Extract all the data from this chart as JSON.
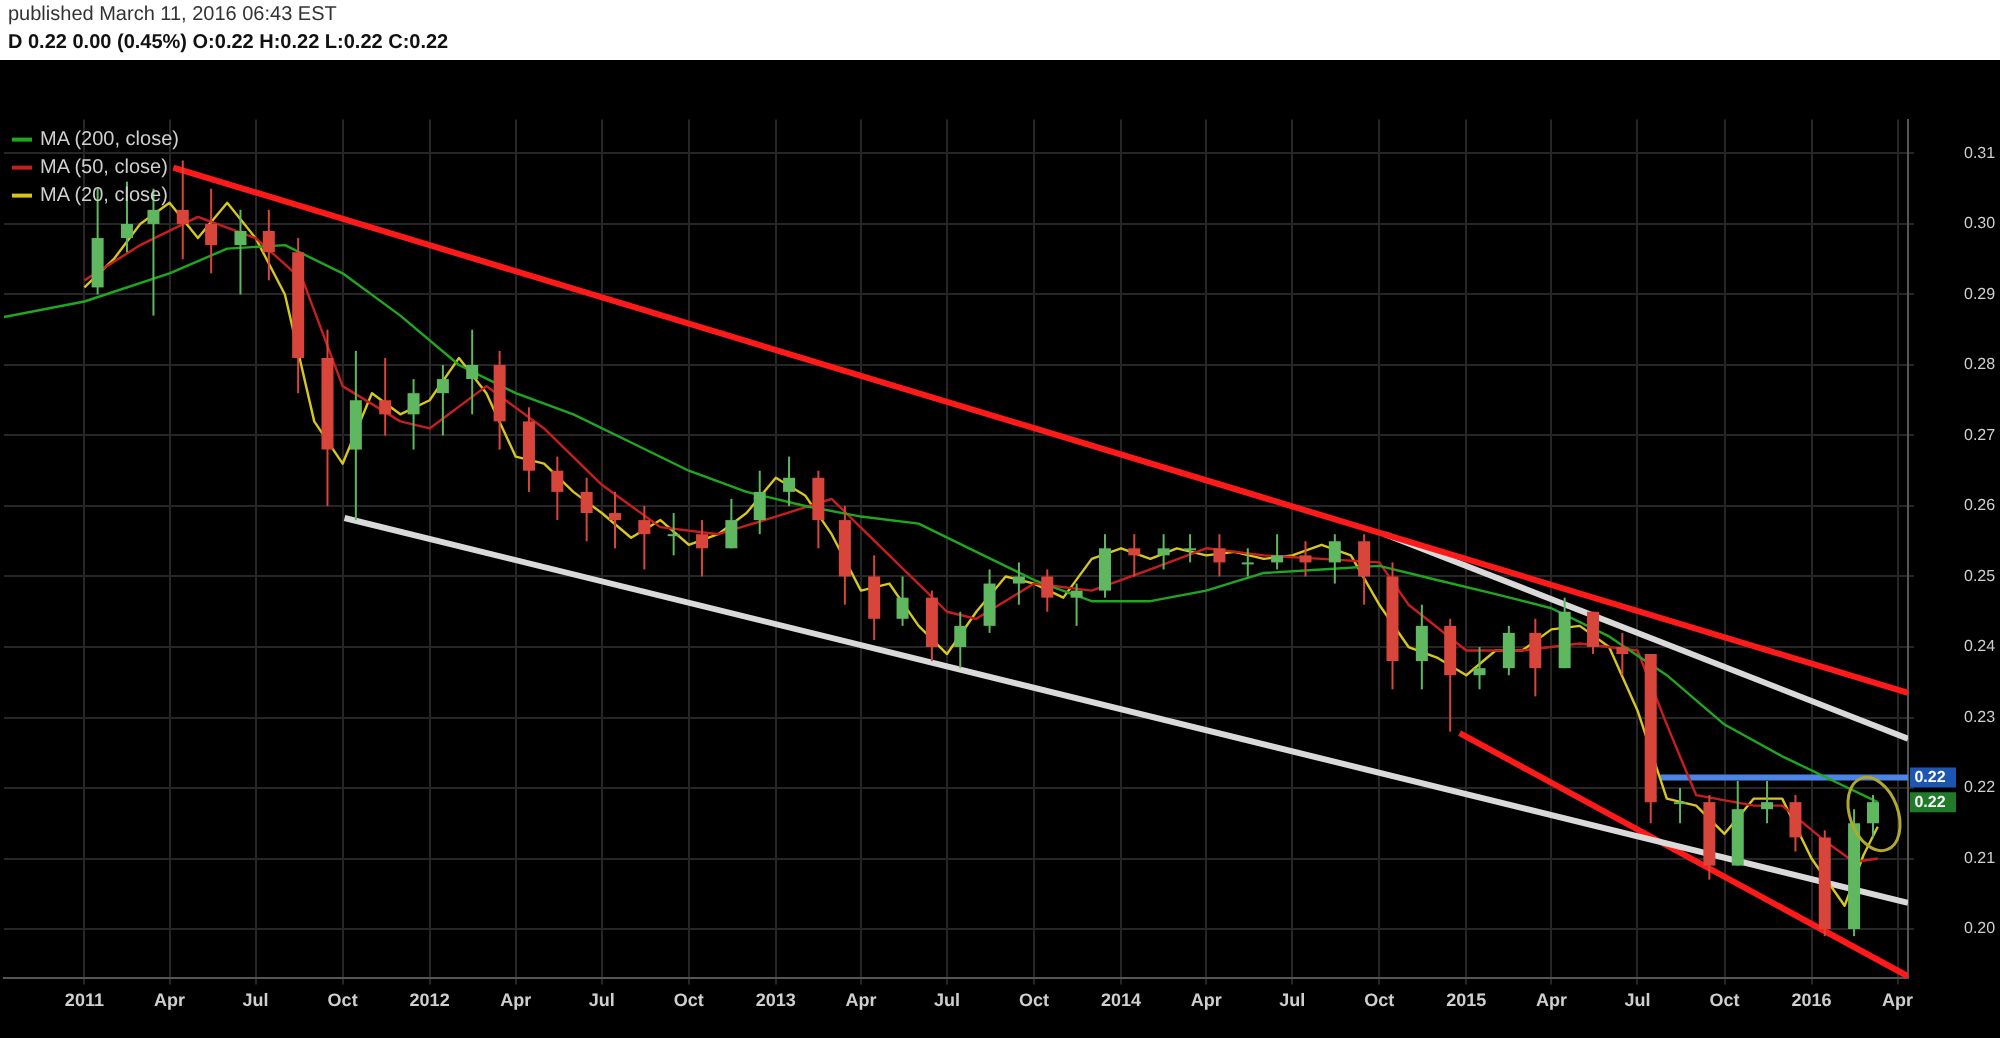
{
  "chart_data": {
    "type": "candlestick",
    "title": "D 0.22 0.00 (0.45%) O:0.22 H:0.22 L:0.22 C:0.22",
    "subtitle": "published March 11, 2016 06:43 EST",
    "x": [
      "2011-01-15",
      "2011-02-15",
      "2011-03-15",
      "2011-04-15",
      "2011-05-15",
      "2011-06-15",
      "2011-07-15",
      "2011-08-15",
      "2011-09-15",
      "2011-10-15",
      "2011-11-15",
      "2011-12-15",
      "2012-01-15",
      "2012-02-15",
      "2012-03-15",
      "2012-04-15",
      "2012-05-15",
      "2012-06-15",
      "2012-07-15",
      "2012-08-15",
      "2012-09-15",
      "2012-10-15",
      "2012-11-15",
      "2012-12-15",
      "2013-01-15",
      "2013-02-15",
      "2013-03-15",
      "2013-04-15",
      "2013-05-15",
      "2013-06-15",
      "2013-07-15",
      "2013-08-15",
      "2013-09-15",
      "2013-10-15",
      "2013-11-15",
      "2013-12-15",
      "2014-01-15",
      "2014-02-15",
      "2014-03-15",
      "2014-04-15",
      "2014-05-15",
      "2014-06-15",
      "2014-07-15",
      "2014-08-15",
      "2014-09-15",
      "2014-10-15",
      "2014-11-15",
      "2014-12-15",
      "2015-01-15",
      "2015-02-15",
      "2015-03-15",
      "2015-04-15",
      "2015-05-15",
      "2015-06-15",
      "2015-07-15",
      "2015-08-15",
      "2015-09-15",
      "2015-10-15",
      "2015-11-15",
      "2015-12-15",
      "2016-01-15",
      "2016-02-15",
      "2016-03-06"
    ],
    "ohlc": [
      [
        0.291,
        0.305,
        0.29,
        0.298
      ],
      [
        0.298,
        0.306,
        0.296,
        0.3
      ],
      [
        0.3,
        0.305,
        0.287,
        0.302
      ],
      [
        0.302,
        0.309,
        0.295,
        0.3
      ],
      [
        0.3,
        0.305,
        0.293,
        0.297
      ],
      [
        0.297,
        0.302,
        0.29,
        0.299
      ],
      [
        0.299,
        0.302,
        0.292,
        0.296
      ],
      [
        0.296,
        0.298,
        0.276,
        0.281
      ],
      [
        0.281,
        0.285,
        0.26,
        0.268
      ],
      [
        0.268,
        0.282,
        0.258,
        0.275
      ],
      [
        0.275,
        0.281,
        0.27,
        0.273
      ],
      [
        0.273,
        0.278,
        0.268,
        0.276
      ],
      [
        0.276,
        0.28,
        0.27,
        0.278
      ],
      [
        0.278,
        0.285,
        0.273,
        0.28
      ],
      [
        0.28,
        0.282,
        0.268,
        0.272
      ],
      [
        0.272,
        0.274,
        0.262,
        0.265
      ],
      [
        0.265,
        0.267,
        0.258,
        0.262
      ],
      [
        0.262,
        0.264,
        0.255,
        0.259
      ],
      [
        0.259,
        0.262,
        0.254,
        0.258
      ],
      [
        0.258,
        0.26,
        0.251,
        0.256
      ],
      [
        0.256,
        0.259,
        0.253,
        0.256
      ],
      [
        0.256,
        0.258,
        0.25,
        0.254
      ],
      [
        0.254,
        0.261,
        0.254,
        0.258
      ],
      [
        0.258,
        0.265,
        0.256,
        0.262
      ],
      [
        0.262,
        0.267,
        0.26,
        0.264
      ],
      [
        0.264,
        0.265,
        0.254,
        0.258
      ],
      [
        0.258,
        0.26,
        0.246,
        0.25
      ],
      [
        0.25,
        0.253,
        0.241,
        0.244
      ],
      [
        0.244,
        0.25,
        0.243,
        0.247
      ],
      [
        0.247,
        0.248,
        0.238,
        0.24
      ],
      [
        0.24,
        0.245,
        0.237,
        0.243
      ],
      [
        0.243,
        0.251,
        0.242,
        0.249
      ],
      [
        0.249,
        0.252,
        0.246,
        0.25
      ],
      [
        0.25,
        0.251,
        0.245,
        0.247
      ],
      [
        0.247,
        0.249,
        0.243,
        0.248
      ],
      [
        0.248,
        0.256,
        0.247,
        0.254
      ],
      [
        0.254,
        0.256,
        0.25,
        0.253
      ],
      [
        0.253,
        0.256,
        0.251,
        0.254
      ],
      [
        0.254,
        0.256,
        0.252,
        0.254
      ],
      [
        0.254,
        0.256,
        0.25,
        0.252
      ],
      [
        0.252,
        0.254,
        0.25,
        0.252
      ],
      [
        0.252,
        0.256,
        0.251,
        0.253
      ],
      [
        0.253,
        0.255,
        0.25,
        0.252
      ],
      [
        0.252,
        0.256,
        0.249,
        0.255
      ],
      [
        0.255,
        0.256,
        0.246,
        0.25
      ],
      [
        0.25,
        0.252,
        0.234,
        0.238
      ],
      [
        0.238,
        0.246,
        0.234,
        0.243
      ],
      [
        0.243,
        0.244,
        0.228,
        0.236
      ],
      [
        0.236,
        0.24,
        0.234,
        0.237
      ],
      [
        0.237,
        0.243,
        0.236,
        0.242
      ],
      [
        0.242,
        0.244,
        0.233,
        0.237
      ],
      [
        0.237,
        0.247,
        0.237,
        0.245
      ],
      [
        0.245,
        0.245,
        0.239,
        0.24
      ],
      [
        0.24,
        0.242,
        0.236,
        0.239
      ],
      [
        0.239,
        0.239,
        0.215,
        0.218
      ],
      [
        0.218,
        0.22,
        0.215,
        0.218
      ],
      [
        0.218,
        0.219,
        0.207,
        0.209
      ],
      [
        0.209,
        0.221,
        0.209,
        0.217
      ],
      [
        0.217,
        0.221,
        0.215,
        0.218
      ],
      [
        0.218,
        0.219,
        0.211,
        0.213
      ],
      [
        0.213,
        0.214,
        0.199,
        0.2
      ],
      [
        0.2,
        0.217,
        0.199,
        0.215
      ],
      [
        0.215,
        0.219,
        0.213,
        0.218
      ]
    ],
    "series": [
      {
        "type": "line",
        "name": "MA (200, close)",
        "color": "#1fa81f",
        "x": [
          "2010-10-08",
          "2011-01-01",
          "2011-04-01",
          "2011-06-01",
          "2011-08-01",
          "2011-10-01",
          "2011-12-01",
          "2012-02-01",
          "2012-04-01",
          "2012-06-01",
          "2012-08-01",
          "2012-10-01",
          "2012-12-01",
          "2013-02-01",
          "2013-04-01",
          "2013-06-01",
          "2013-08-01",
          "2013-10-01",
          "2013-12-01",
          "2014-02-01",
          "2014-04-01",
          "2014-06-01",
          "2014-08-01",
          "2014-10-01",
          "2014-12-01",
          "2015-02-01",
          "2015-04-01",
          "2015-06-01",
          "2015-08-01",
          "2015-10-01",
          "2015-12-01",
          "2016-02-01",
          "2016-03-11"
        ],
        "values": [
          0.2868,
          0.289,
          0.293,
          0.2965,
          0.297,
          0.293,
          0.287,
          0.28,
          0.276,
          0.273,
          0.269,
          0.265,
          0.262,
          0.26,
          0.2585,
          0.2575,
          0.2535,
          0.2495,
          0.2465,
          0.2465,
          0.248,
          0.2505,
          0.251,
          0.2515,
          0.2495,
          0.2475,
          0.2455,
          0.2415,
          0.236,
          0.229,
          0.2245,
          0.2205,
          0.218
        ]
      },
      {
        "type": "line",
        "name": "MA (50, close)",
        "color": "#c81e1e",
        "x": [
          "2011-01-01",
          "2011-03-01",
          "2011-05-01",
          "2011-07-01",
          "2011-08-20",
          "2011-10-01",
          "2011-12-01",
          "2012-01-01",
          "2012-03-01",
          "2012-05-01",
          "2012-07-01",
          "2012-09-01",
          "2012-11-01",
          "2013-01-01",
          "2013-03-01",
          "2013-05-01",
          "2013-07-01",
          "2013-08-01",
          "2013-10-01",
          "2013-12-01",
          "2014-02-01",
          "2014-04-01",
          "2014-06-01",
          "2014-08-01",
          "2014-10-01",
          "2014-11-01",
          "2015-01-01",
          "2015-03-01",
          "2015-05-01",
          "2015-07-01",
          "2015-08-01",
          "2015-09-01",
          "2015-11-01",
          "2015-12-01",
          "2016-01-15",
          "2016-02-15",
          "2016-03-11"
        ],
        "values": [
          0.292,
          0.297,
          0.301,
          0.298,
          0.292,
          0.277,
          0.272,
          0.271,
          0.277,
          0.271,
          0.263,
          0.257,
          0.256,
          0.2585,
          0.261,
          0.253,
          0.245,
          0.244,
          0.249,
          0.248,
          0.251,
          0.254,
          0.253,
          0.2525,
          0.252,
          0.246,
          0.2395,
          0.2395,
          0.2405,
          0.2395,
          0.229,
          0.219,
          0.2175,
          0.2175,
          0.2125,
          0.2095,
          0.21
        ]
      },
      {
        "type": "line",
        "name": "MA (20, close)",
        "color": "#d6c61e",
        "x": [
          "2011-01-01",
          "2011-02-01",
          "2011-03-01",
          "2011-04-01",
          "2011-05-01",
          "2011-06-01",
          "2011-07-01",
          "2011-08-01",
          "2011-09-01",
          "2011-10-01",
          "2011-11-01",
          "2011-12-01",
          "2012-01-01",
          "2012-02-01",
          "2012-03-01",
          "2012-04-01",
          "2012-05-01",
          "2012-06-01",
          "2012-07-01",
          "2012-08-01",
          "2012-09-01",
          "2012-10-01",
          "2012-11-01",
          "2012-12-01",
          "2013-01-01",
          "2013-02-01",
          "2013-03-01",
          "2013-04-01",
          "2013-05-01",
          "2013-06-01",
          "2013-07-01",
          "2013-08-01",
          "2013-09-01",
          "2013-10-01",
          "2013-11-01",
          "2013-12-01",
          "2014-01-01",
          "2014-02-01",
          "2014-03-01",
          "2014-04-01",
          "2014-05-01",
          "2014-06-01",
          "2014-07-01",
          "2014-08-01",
          "2014-09-01",
          "2014-10-01",
          "2014-11-01",
          "2014-12-01",
          "2015-01-01",
          "2015-02-01",
          "2015-03-01",
          "2015-04-01",
          "2015-05-01",
          "2015-06-01",
          "2015-07-01",
          "2015-08-01",
          "2015-09-01",
          "2015-10-01",
          "2015-11-01",
          "2015-12-01",
          "2016-01-01",
          "2016-02-05",
          "2016-02-25",
          "2016-03-11"
        ],
        "values": [
          0.291,
          0.295,
          0.3,
          0.303,
          0.298,
          0.303,
          0.298,
          0.29,
          0.272,
          0.266,
          0.276,
          0.273,
          0.275,
          0.281,
          0.276,
          0.267,
          0.266,
          0.262,
          0.259,
          0.2555,
          0.258,
          0.2545,
          0.256,
          0.259,
          0.264,
          0.2615,
          0.256,
          0.248,
          0.249,
          0.243,
          0.239,
          0.245,
          0.25,
          0.249,
          0.247,
          0.2525,
          0.254,
          0.2525,
          0.254,
          0.253,
          0.2535,
          0.2525,
          0.253,
          0.2545,
          0.253,
          0.246,
          0.24,
          0.2385,
          0.236,
          0.2395,
          0.2395,
          0.2425,
          0.243,
          0.24,
          0.231,
          0.2185,
          0.2175,
          0.2135,
          0.2185,
          0.2185,
          0.21,
          0.2033,
          0.2105,
          0.2145
        ]
      },
      {
        "type": "line",
        "color": "#ff1a1a",
        "x": [
          "2011-04-05",
          "2016-04-12"
        ],
        "values": [
          0.308,
          0.2335
        ]
      },
      {
        "type": "line",
        "color": "#d9d9d9",
        "x": [
          "2014-10-07",
          "2016-04-12"
        ],
        "values": [
          0.256,
          0.227
        ]
      },
      {
        "type": "line",
        "color": "#d9d9d9",
        "x": [
          "2011-10-03",
          "2016-04-12"
        ],
        "values": [
          0.2583,
          0.2037
        ]
      },
      {
        "type": "line",
        "color": "#ff1a1a",
        "x": [
          "2014-12-25",
          "2016-04-12"
        ],
        "values": [
          0.2278,
          0.1933
        ]
      },
      {
        "type": "line",
        "color": "#4a86e8",
        "x": [
          "2015-07-25",
          "2016-04-12"
        ],
        "values": [
          0.2215,
          0.2215
        ]
      }
    ],
    "annotations": [
      {
        "text": "0.22",
        "y": 0.2215
      },
      {
        "text": "0.22",
        "y": 0.218
      }
    ],
    "xlim": [
      "2010-10-08",
      "2016-04-12"
    ],
    "xticks": [
      {
        "value": "2011-01",
        "label": "2011"
      },
      {
        "value": "2011-04",
        "label": "Apr"
      },
      {
        "value": "2011-07",
        "label": "Jul"
      },
      {
        "value": "2011-10",
        "label": "Oct"
      },
      {
        "value": "2012-01",
        "label": "2012"
      },
      {
        "value": "2012-04",
        "label": "Apr"
      },
      {
        "value": "2012-07",
        "label": "Jul"
      },
      {
        "value": "2012-10",
        "label": "Oct"
      },
      {
        "value": "2013-01",
        "label": "2013"
      },
      {
        "value": "2013-04",
        "label": "Apr"
      },
      {
        "value": "2013-07",
        "label": "Jul"
      },
      {
        "value": "2013-10",
        "label": "Oct"
      },
      {
        "value": "2014-01",
        "label": "2014"
      },
      {
        "value": "2014-04",
        "label": "Apr"
      },
      {
        "value": "2014-07",
        "label": "Jul"
      },
      {
        "value": "2014-10",
        "label": "Oct"
      },
      {
        "value": "2015-01",
        "label": "2015"
      },
      {
        "value": "2015-04",
        "label": "Apr"
      },
      {
        "value": "2015-07",
        "label": "Jul"
      },
      {
        "value": "2015-10",
        "label": "Oct"
      },
      {
        "value": "2016-01",
        "label": "2016"
      },
      {
        "value": "2016-04",
        "label": "Apr"
      }
    ],
    "ylim": [
      0.193,
      0.3148
    ],
    "yticks": [
      {
        "value": 0.2,
        "label": "0.20"
      },
      0.21,
      0.22,
      0.23,
      0.24,
      0.25,
      0.26,
      0.27,
      0.28,
      0.29,
      {
        "value": 0.3,
        "label": "0.30"
      },
      0.31
    ],
    "grid": true,
    "legend": "top left",
    "line_style": "solid",
    "marker": "none"
  }
}
